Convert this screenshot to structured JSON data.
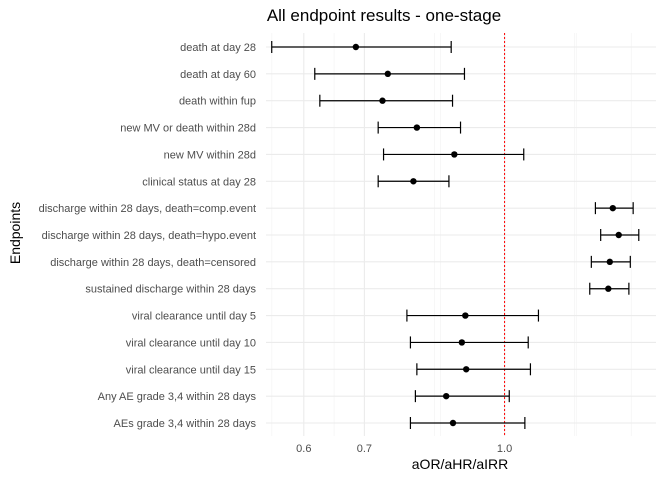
{
  "chart_data": {
    "type": "forest",
    "title": "All endpoint results - one-stage",
    "xlabel": "aOR/aHR/aIRR",
    "ylabel": "Endpoints",
    "x_scale": "log",
    "xlim": [
      0.545,
      1.47
    ],
    "x_ticks": [
      0.6,
      0.7,
      1.0
    ],
    "x_tick_labels": [
      "0.6",
      "0.7",
      "1.0"
    ],
    "reference_line": {
      "x": 1.0,
      "color": "#ff0000",
      "style": "dotted"
    },
    "grid": true,
    "endpoints": [
      {
        "label": "death at day 28",
        "estimate": 0.685,
        "lower": 0.553,
        "upper": 0.873
      },
      {
        "label": "death at day 60",
        "estimate": 0.743,
        "lower": 0.617,
        "upper": 0.903
      },
      {
        "label": "death within fup",
        "estimate": 0.733,
        "lower": 0.625,
        "upper": 0.876
      },
      {
        "label": "new MV or death within 28d",
        "estimate": 0.8,
        "lower": 0.725,
        "upper": 0.894
      },
      {
        "label": "new MV within 28d",
        "estimate": 0.88,
        "lower": 0.735,
        "upper": 1.05
      },
      {
        "label": "clinical status at day 28",
        "estimate": 0.793,
        "lower": 0.725,
        "upper": 0.868
      },
      {
        "label": "discharge within 28 days, death=comp.event",
        "estimate": 1.317,
        "lower": 1.26,
        "upper": 1.387
      },
      {
        "label": "discharge within 28 days, death=hypo.event",
        "estimate": 1.337,
        "lower": 1.277,
        "upper": 1.407
      },
      {
        "label": "discharge within 28 days, death=censored",
        "estimate": 1.307,
        "lower": 1.247,
        "upper": 1.377
      },
      {
        "label": "sustained discharge within 28 days",
        "estimate": 1.302,
        "lower": 1.242,
        "upper": 1.372
      },
      {
        "label": "viral clearance until day 5",
        "estimate": 0.905,
        "lower": 0.78,
        "upper": 1.09
      },
      {
        "label": "viral clearance until day 10",
        "estimate": 0.897,
        "lower": 0.787,
        "upper": 1.062
      },
      {
        "label": "viral clearance until day 15",
        "estimate": 0.907,
        "lower": 0.8,
        "upper": 1.068
      },
      {
        "label": "Any AE grade 3,4 within 28 days",
        "estimate": 0.862,
        "lower": 0.797,
        "upper": 1.012
      },
      {
        "label": "AEs grade 3,4 within 28 days",
        "estimate": 0.877,
        "lower": 0.787,
        "upper": 1.053
      }
    ]
  }
}
